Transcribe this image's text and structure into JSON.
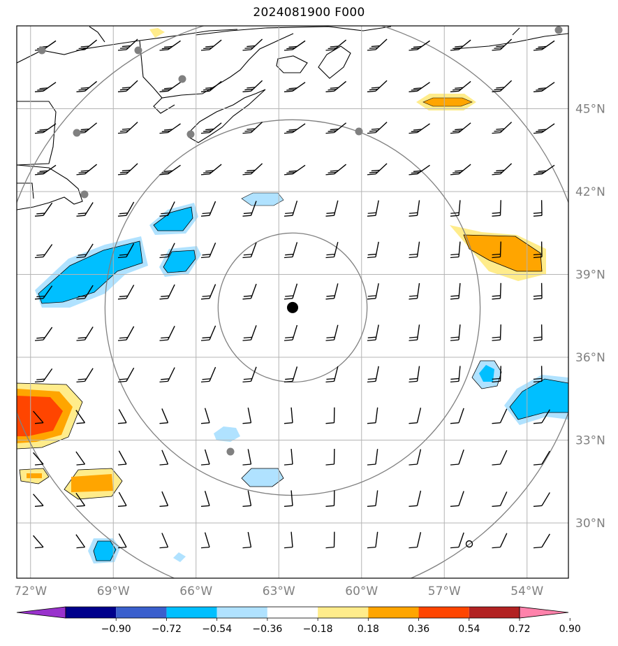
{
  "title": "2024081900 F000",
  "map": {
    "lon_range": [
      -72.5,
      -52.5
    ],
    "lat_range": [
      28.0,
      48.0
    ],
    "lon_ticks": [
      {
        "value": -72,
        "label": "72°W"
      },
      {
        "value": -69,
        "label": "69°W"
      },
      {
        "value": -66,
        "label": "66°W"
      },
      {
        "value": -63,
        "label": "63°W"
      },
      {
        "value": -60,
        "label": "60°W"
      },
      {
        "value": -57,
        "label": "57°W"
      },
      {
        "value": -54,
        "label": "54°W"
      }
    ],
    "lat_ticks": [
      {
        "value": 45,
        "label": "45°N"
      },
      {
        "value": 42,
        "label": "42°N"
      },
      {
        "value": 39,
        "label": "39°N"
      },
      {
        "value": 36,
        "label": "36°N"
      },
      {
        "value": 33,
        "label": "33°N"
      },
      {
        "value": 30,
        "label": "30°N"
      }
    ],
    "center": {
      "lon": -62.5,
      "lat": 37.8
    },
    "range_rings_deg": [
      2.7,
      6.8,
      10.7
    ]
  },
  "colorbar": {
    "tick_labels": [
      "−0.90",
      "−0.72",
      "−0.54",
      "−0.36",
      "−0.18",
      "0.18",
      "0.36",
      "0.54",
      "0.72",
      "0.90"
    ],
    "colors": [
      "#9932cc",
      "#00008b",
      "#3a5fcd",
      "#00bfff",
      "#b0e2ff",
      "#ffffff",
      "#ffec8b",
      "#ffa500",
      "#ff4500",
      "#b22222",
      "#ff82ab"
    ]
  },
  "colors": {
    "grid": "#b4b4b4",
    "rings": "#808080",
    "station": "#808080",
    "center_marker": "#000000",
    "coast": "#000000"
  }
}
